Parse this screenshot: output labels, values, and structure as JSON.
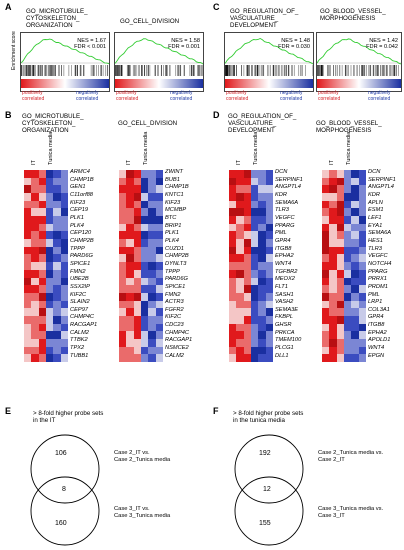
{
  "panel_A": {
    "letter": "A",
    "plots": [
      {
        "title": "GO_MICROTUBULE_\nCYTOSKELETON_\nORGANIZATION",
        "nes": "NES = 1.67",
        "fdr": "FDR < 0.001"
      },
      {
        "title": "GO_CELL_DIVISION",
        "nes": "NES = 1.58",
        "fdr": "FDR = 0.001"
      }
    ],
    "ylabel": "Enrichment score",
    "pos_label": "positively\ncorrelated",
    "neg_label": "negatively\ncorrelated"
  },
  "panel_C": {
    "letter": "C",
    "plots": [
      {
        "title": "GO_REGULATION_OF_\nVASCULATURE_\nDEVELOPMENT",
        "nes": "NES = 1.48",
        "fdr": "FDR = 0.030"
      },
      {
        "title": "GO_BLOOD_VESSEL_\nMORPHOGENESIS",
        "nes": "NES = 1.42",
        "fdr": "FDR = 0.042"
      }
    ],
    "pos_label": "positively\ncorrelated",
    "neg_label": "negatively\ncorrelated"
  },
  "panel_B": {
    "letter": "B",
    "heatmaps": [
      {
        "title": "GO_MICROTUBULE_\nCYTOSKELETON_\nORGANIZATION",
        "col_labels": [
          "IT",
          "Tunica media"
        ],
        "genes": [
          "ARMC4",
          "CHMP1B",
          "GEN1",
          "C11orf88",
          "KIF23",
          "CEP19",
          "PLK1",
          "PLK4",
          "CEP120",
          "CHMP2B",
          "TPPP",
          "PARD6G",
          "SPICE1",
          "FMN2",
          "UBE2B",
          "SSX2IP",
          "KIF2C",
          "SLAIN2",
          "CEP97",
          "CHMP4C",
          "RACGAP1",
          "CALM2",
          "TTBK2",
          "TPX2",
          "TUBB1"
        ]
      },
      {
        "title": "GO_CELL_DIVISION",
        "col_labels": [
          "IT",
          "Tunica media"
        ],
        "genes": [
          "ZWINT",
          "BUB1",
          "CHMP1B",
          "KNTC1",
          "KIF23",
          "MCMBP",
          "BTC",
          "BRIP1",
          "PLK1",
          "PLK4",
          "CUZD1",
          "CHMP2B",
          "DYNLT3",
          "TPPP",
          "PARD6G",
          "SPICE1",
          "FMN2",
          "ACTR3",
          "FGFR2",
          "KIF2C",
          "CDC23",
          "CHMP4C",
          "RACGAP1",
          "NSMCE2",
          "CALM2"
        ]
      }
    ]
  },
  "panel_D": {
    "letter": "D",
    "heatmaps": [
      {
        "title": "GO_REGULATION_OF_\nVASCULATURE_\nDEVELOPMENT",
        "col_labels": [
          "IT",
          "Tunica media"
        ],
        "genes": [
          "DCN",
          "SERPINF1",
          "ANGPTL4",
          "KDR",
          "SEMA6A",
          "TLR3",
          "VEGFC",
          "PPARG",
          "PML",
          "GPR4",
          "ITGB8",
          "EPHA2",
          "WNT4",
          "TGFBR2",
          "MEOX2",
          "FLT1",
          "SASH1",
          "VASH2",
          "SEMA3E",
          "FKBPL",
          "GHSR",
          "PRKCA",
          "TMEM100",
          "PLCG1",
          "DLL1"
        ]
      },
      {
        "title": "GO_BLOOD_VESSEL_\nMORPHOGENESIS",
        "col_labels": [
          "IT",
          "Tunica media"
        ],
        "genes": [
          "DCN",
          "SERPINF1",
          "ANGPTL4",
          "KDR",
          "APLN",
          "ESM1",
          "LEF1",
          "EYA1",
          "SEMA6A",
          "HES1",
          "TLR3",
          "VEGFC",
          "NOTCH4",
          "PPARG",
          "PRRX1",
          "PRDM1",
          "PML",
          "LRP1",
          "COL3A1",
          "GPR4",
          "ITGB8",
          "EPHA2",
          "APOLD1",
          "WNT4",
          "EPGN"
        ]
      }
    ]
  },
  "panel_E": {
    "letter": "E",
    "title": "> 8-fold higher probe sets\nin the IT",
    "top_only": "106",
    "overlap": "8",
    "bottom_only": "160",
    "top_label": "Case 2_IT vs.\nCase 2_Tunica media",
    "bottom_label": "Case 3_IT vs.\nCase 3_Tunica media"
  },
  "panel_F": {
    "letter": "F",
    "title": "> 8-fold higher probe sets\nin the tunica media",
    "top_only": "192",
    "overlap": "12",
    "bottom_only": "155",
    "top_label": "Case 2_Tunica media vs.\nCase 2_IT",
    "bottom_label": "Case 3_Tunica media vs.\nCase 3_IT"
  },
  "colors": {
    "high": "#e0191c",
    "low": "#1a2fa0",
    "mid": "#d9d9f0",
    "curve": "#33cc33"
  }
}
